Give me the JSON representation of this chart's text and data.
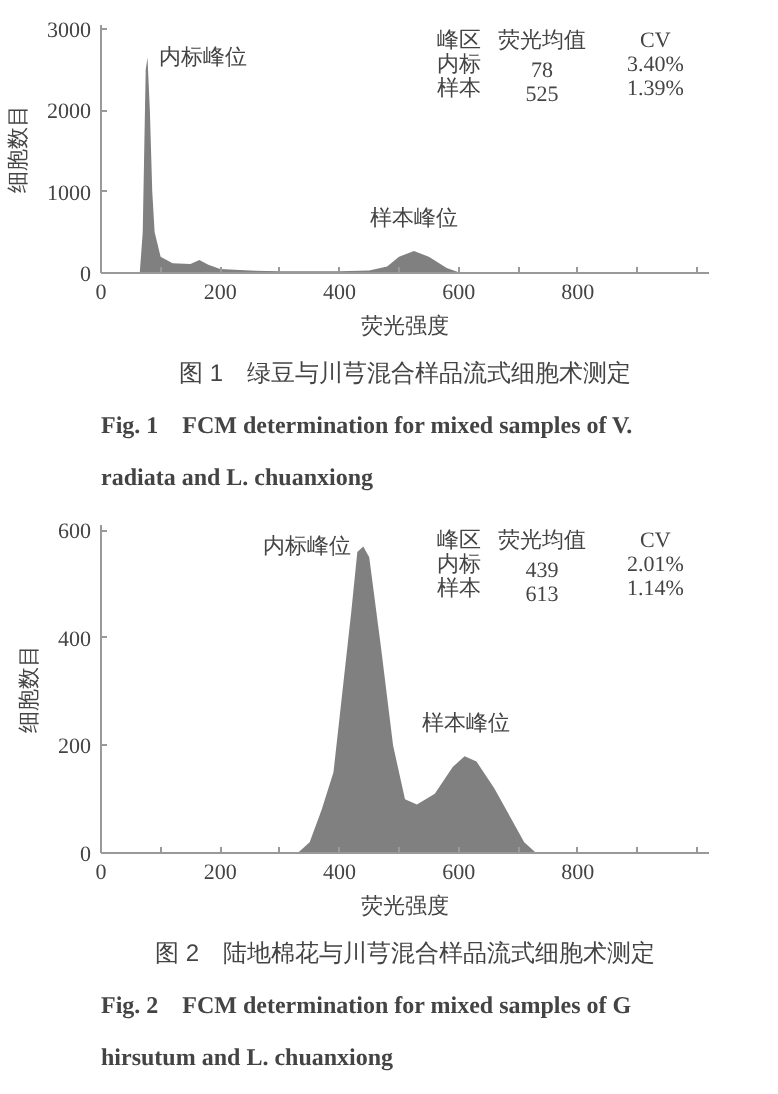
{
  "chart_data": [
    {
      "type": "area",
      "title": "图 1　绿豆与川芎混合样品流式细胞术测定",
      "subtitle": "Fig. 1　FCM determination for mixed samples of V. radiata and L. chuanxiong",
      "xlabel": "荧光强度",
      "ylabel": "细胞数目",
      "color": "#808080",
      "x": [
        55,
        65,
        70,
        75,
        78,
        82,
        86,
        90,
        100,
        120,
        150,
        165,
        180,
        200,
        250,
        300,
        400,
        450,
        480,
        500,
        525,
        550,
        580,
        600,
        620,
        1000
      ],
      "values": [
        0,
        0,
        500,
        2500,
        2650,
        2000,
        1000,
        500,
        200,
        120,
        110,
        160,
        100,
        50,
        30,
        20,
        20,
        30,
        80,
        200,
        270,
        200,
        60,
        10,
        0,
        0
      ],
      "xlim": [
        0,
        1020
      ],
      "ylim": [
        0,
        3050
      ],
      "xticks": [
        0,
        {
          "value": 100,
          "label": null
        },
        200,
        {
          "value": 300,
          "label": null
        },
        400,
        {
          "value": 500,
          "label": null
        },
        600,
        {
          "value": 700,
          "label": null
        },
        800,
        {
          "value": 900,
          "label": null
        },
        {
          "value": 1000,
          "label": null
        }
      ],
      "yticks": [
        0,
        1000,
        2000,
        3000
      ],
      "grid": false,
      "annotations": [
        {
          "text": "内标峰位",
          "x": 78,
          "y": 2650
        },
        {
          "text": "样本峰位",
          "x": 525,
          "y": 270
        },
        "峰区 荧光均值 CV",
        "内标 78 3.40%",
        "样本 525 1.39%"
      ]
    },
    {
      "type": "area",
      "title": "图 2　陆地棉花与川芎混合样品流式细胞术测定",
      "subtitle": "Fig. 2　FCM determination for mixed samples of G hirsutum and L. chuanxiong",
      "xlabel": "荧光强度",
      "ylabel": "细胞数目",
      "color": "#808080",
      "x": [
        330,
        350,
        370,
        390,
        400,
        420,
        430,
        440,
        450,
        470,
        490,
        510,
        530,
        560,
        590,
        610,
        630,
        660,
        690,
        710,
        730
      ],
      "values": [
        0,
        20,
        80,
        150,
        250,
        450,
        560,
        570,
        550,
        380,
        200,
        100,
        90,
        110,
        160,
        180,
        170,
        120,
        60,
        20,
        0
      ],
      "xlim": [
        0,
        1020
      ],
      "ylim": [
        0,
        610
      ],
      "xticks": [
        0,
        {
          "value": 100,
          "label": null
        },
        200,
        {
          "value": 300,
          "label": null
        },
        400,
        {
          "value": 500,
          "label": null
        },
        600,
        {
          "value": 700,
          "label": null
        },
        800,
        {
          "value": 900,
          "label": null
        },
        {
          "value": 1000,
          "label": null
        }
      ],
      "yticks": [
        0,
        200,
        400,
        600
      ],
      "grid": false,
      "annotations": [
        {
          "text": "内标峰位",
          "x": 439,
          "y": 570
        },
        {
          "text": "样本峰位",
          "x": 613,
          "y": 180
        },
        "峰区 荧光均值 CV",
        "内标 439 2.01%",
        "样本 613 1.14%"
      ]
    }
  ]
}
